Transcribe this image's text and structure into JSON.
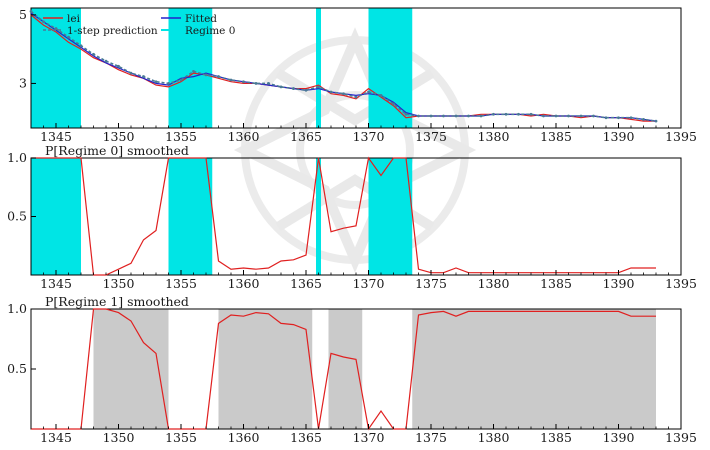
{
  "chart_data": [
    {
      "type": "line",
      "title": "",
      "xlabel": "",
      "ylabel": "",
      "xlim": [
        1343,
        1395
      ],
      "ylim": [
        1.7,
        5.2
      ],
      "x_ticks": [
        1345,
        1350,
        1355,
        1360,
        1365,
        1370,
        1375,
        1380,
        1385,
        1390,
        1395
      ],
      "y_ticks": [
        3,
        5
      ],
      "regime_shading": {
        "name": "Regime 0",
        "color": "#00e5e5",
        "intervals": [
          [
            1343,
            1347
          ],
          [
            1354,
            1357.5
          ],
          [
            1365.8,
            1366.2
          ],
          [
            1370,
            1373.5
          ]
        ]
      },
      "legend": {
        "position": "top-left",
        "entries": [
          "lei",
          "Fitted",
          "1-step prediction",
          "Regime 0"
        ]
      },
      "series": [
        {
          "name": "lei",
          "color": "#e02020",
          "x": [
            1343,
            1344,
            1345,
            1346,
            1347,
            1348,
            1349,
            1350,
            1351,
            1352,
            1353,
            1354,
            1355,
            1356,
            1357,
            1358,
            1359,
            1360,
            1361,
            1362,
            1363,
            1364,
            1365,
            1366,
            1367,
            1368,
            1369,
            1370,
            1371,
            1372,
            1373,
            1374,
            1375,
            1376,
            1377,
            1378,
            1379,
            1380,
            1381,
            1382,
            1383,
            1384,
            1385,
            1386,
            1387,
            1388,
            1389,
            1390,
            1391,
            1392,
            1393
          ],
          "values": [
            5.0,
            4.7,
            4.5,
            4.2,
            4.0,
            3.75,
            3.6,
            3.4,
            3.25,
            3.15,
            2.95,
            2.9,
            3.05,
            3.3,
            3.25,
            3.15,
            3.05,
            3.0,
            3.0,
            2.95,
            2.9,
            2.85,
            2.85,
            2.95,
            2.7,
            2.65,
            2.55,
            2.85,
            2.6,
            2.35,
            2.0,
            2.05,
            2.05,
            2.05,
            2.05,
            2.05,
            2.1,
            2.1,
            2.1,
            2.1,
            2.05,
            2.1,
            2.05,
            2.05,
            2.0,
            2.05,
            2.0,
            2.0,
            1.95,
            1.9,
            1.9
          ]
        },
        {
          "name": "Fitted",
          "color": "#2222cc",
          "x": [
            1343,
            1344,
            1345,
            1346,
            1347,
            1348,
            1349,
            1350,
            1351,
            1352,
            1353,
            1354,
            1355,
            1356,
            1357,
            1358,
            1359,
            1360,
            1361,
            1362,
            1363,
            1364,
            1365,
            1366,
            1367,
            1368,
            1369,
            1370,
            1371,
            1372,
            1373,
            1374,
            1375,
            1376,
            1377,
            1378,
            1379,
            1380,
            1381,
            1382,
            1383,
            1384,
            1385,
            1386,
            1387,
            1388,
            1389,
            1390,
            1391,
            1392,
            1393
          ],
          "values": [
            5.05,
            4.8,
            4.55,
            4.3,
            4.05,
            3.8,
            3.6,
            3.45,
            3.3,
            3.15,
            3.0,
            2.95,
            3.15,
            3.2,
            3.3,
            3.2,
            3.1,
            3.05,
            3.0,
            2.95,
            2.9,
            2.85,
            2.8,
            2.85,
            2.75,
            2.7,
            2.65,
            2.7,
            2.65,
            2.45,
            2.15,
            2.05,
            2.05,
            2.05,
            2.05,
            2.05,
            2.05,
            2.1,
            2.1,
            2.1,
            2.1,
            2.05,
            2.05,
            2.05,
            2.05,
            2.05,
            2.0,
            2.0,
            2.0,
            1.95,
            1.9
          ]
        },
        {
          "name": "1-step prediction",
          "color": "#4a7a96",
          "x": [
            1343,
            1344,
            1345,
            1346,
            1347,
            1348,
            1349,
            1350,
            1351,
            1352,
            1353,
            1354,
            1355,
            1356,
            1357,
            1358,
            1359,
            1360,
            1361,
            1362,
            1363,
            1364,
            1365,
            1366,
            1367,
            1368,
            1369,
            1370,
            1371,
            1372,
            1373,
            1374,
            1375,
            1376,
            1377,
            1378,
            1379,
            1380,
            1381,
            1382,
            1383,
            1384,
            1385,
            1386,
            1387,
            1388,
            1389,
            1390,
            1391,
            1392,
            1393
          ],
          "values": [
            5.1,
            4.8,
            4.6,
            4.35,
            4.1,
            3.85,
            3.65,
            3.5,
            3.3,
            3.2,
            3.05,
            3.0,
            3.1,
            3.35,
            3.25,
            3.2,
            3.1,
            3.05,
            3.0,
            3.0,
            2.9,
            2.85,
            2.8,
            2.9,
            2.75,
            2.7,
            2.6,
            2.75,
            2.65,
            2.4,
            2.1,
            2.05,
            2.05,
            2.05,
            2.05,
            2.05,
            2.05,
            2.1,
            2.1,
            2.1,
            2.1,
            2.05,
            2.05,
            2.05,
            2.05,
            2.05,
            2.0,
            2.0,
            2.0,
            1.95,
            1.9
          ]
        }
      ]
    },
    {
      "type": "line",
      "title": "P[Regime 0] smoothed",
      "xlabel": "",
      "ylabel": "",
      "xlim": [
        1343,
        1395
      ],
      "ylim": [
        0,
        1
      ],
      "x_ticks": [
        1345,
        1350,
        1355,
        1360,
        1365,
        1370,
        1375,
        1380,
        1385,
        1390,
        1395
      ],
      "y_ticks": [
        0.5,
        1.0
      ],
      "y_tick_labels": [
        "0.5",
        "1.0"
      ],
      "shading": {
        "color": "#00e5e5",
        "intervals": [
          [
            1343,
            1347
          ],
          [
            1354,
            1357.5
          ],
          [
            1365.8,
            1366.2
          ],
          [
            1370,
            1373.5
          ]
        ]
      },
      "series": [
        {
          "name": "",
          "color": "#e02020",
          "x": [
            1343,
            1344,
            1345,
            1346,
            1347,
            1348,
            1349,
            1350,
            1351,
            1352,
            1353,
            1354,
            1355,
            1356,
            1357,
            1358,
            1359,
            1360,
            1361,
            1362,
            1363,
            1364,
            1365,
            1366,
            1367,
            1368,
            1369,
            1370,
            1371,
            1372,
            1373,
            1374,
            1375,
            1376,
            1377,
            1378,
            1379,
            1380,
            1381,
            1382,
            1383,
            1384,
            1385,
            1386,
            1387,
            1388,
            1389,
            1390,
            1391,
            1392,
            1393
          ],
          "values": [
            1.0,
            1.0,
            1.0,
            1.0,
            1.0,
            0.0,
            0.0,
            0.05,
            0.1,
            0.3,
            0.38,
            1.0,
            1.0,
            1.0,
            1.0,
            0.12,
            0.05,
            0.06,
            0.05,
            0.06,
            0.12,
            0.13,
            0.17,
            1.0,
            0.37,
            0.4,
            0.42,
            1.0,
            0.85,
            1.0,
            1.0,
            0.05,
            0.02,
            0.02,
            0.06,
            0.02,
            0.02,
            0.02,
            0.02,
            0.02,
            0.02,
            0.02,
            0.02,
            0.02,
            0.02,
            0.02,
            0.02,
            0.02,
            0.06,
            0.06,
            0.06
          ]
        }
      ]
    },
    {
      "type": "line",
      "title": "P[Regime 1] smoothed",
      "xlabel": "",
      "ylabel": "",
      "xlim": [
        1343,
        1395
      ],
      "ylim": [
        0,
        1
      ],
      "x_ticks": [
        1345,
        1350,
        1355,
        1360,
        1365,
        1370,
        1375,
        1380,
        1385,
        1390,
        1395
      ],
      "y_ticks": [
        0.5,
        1.0
      ],
      "y_tick_labels": [
        "0.5",
        "1.0"
      ],
      "shading": {
        "color": "#b8b8b8",
        "intervals": [
          [
            1348,
            1354
          ],
          [
            1358,
            1365.5
          ],
          [
            1366.8,
            1369.5
          ],
          [
            1373.5,
            1393
          ]
        ]
      },
      "series": [
        {
          "name": "",
          "color": "#e02020",
          "x": [
            1343,
            1344,
            1345,
            1346,
            1347,
            1348,
            1349,
            1350,
            1351,
            1352,
            1353,
            1354,
            1355,
            1356,
            1357,
            1358,
            1359,
            1360,
            1361,
            1362,
            1363,
            1364,
            1365,
            1366,
            1367,
            1368,
            1369,
            1370,
            1371,
            1372,
            1373,
            1374,
            1375,
            1376,
            1377,
            1378,
            1379,
            1380,
            1381,
            1382,
            1383,
            1384,
            1385,
            1386,
            1387,
            1388,
            1389,
            1390,
            1391,
            1392,
            1393
          ],
          "values": [
            0.0,
            0.0,
            0.0,
            0.0,
            0.0,
            1.0,
            1.0,
            0.97,
            0.9,
            0.72,
            0.63,
            0.0,
            0.0,
            0.0,
            0.0,
            0.88,
            0.95,
            0.94,
            0.97,
            0.96,
            0.88,
            0.87,
            0.83,
            0.0,
            0.63,
            0.6,
            0.58,
            0.0,
            0.15,
            0.0,
            0.0,
            0.95,
            0.97,
            0.98,
            0.94,
            0.98,
            0.98,
            0.98,
            0.98,
            0.98,
            0.98,
            0.98,
            0.98,
            0.98,
            0.98,
            0.98,
            0.98,
            0.98,
            0.94,
            0.94,
            0.94
          ]
        }
      ]
    }
  ]
}
